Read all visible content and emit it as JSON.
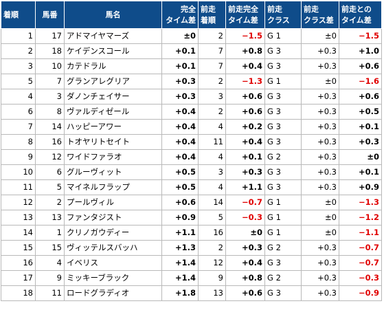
{
  "headers": {
    "finish": [
      "着順"
    ],
    "post": [
      "馬番"
    ],
    "horse": [
      "馬名"
    ],
    "time_diff": [
      "完全",
      "タイム差"
    ],
    "prev_finish": [
      "前走",
      "着順"
    ],
    "prev_time_diff": [
      "前走完全",
      "タイム差"
    ],
    "prev_class": [
      "前走",
      "クラス"
    ],
    "class_diff": [
      "前走",
      "クラス差"
    ],
    "time_diff_vs_prev": [
      "前走との",
      "タイム差"
    ]
  },
  "colors": {
    "header_bg": "#0f4c8a",
    "header_text": "#ffffff",
    "negative": "#e00000",
    "grid": "#b9b9b9"
  },
  "rows": [
    {
      "finish": "1",
      "post": "17",
      "horse": "アドマイヤマーズ",
      "time_diff": "±0",
      "prev_finish": "2",
      "prev_time_diff": "−1.5",
      "prev_time_diff_red": true,
      "prev_class": "G 1",
      "class_diff": "±0",
      "vs_prev": "−1.5",
      "vs_prev_red": true
    },
    {
      "finish": "2",
      "post": "18",
      "horse": "ケイデンスコール",
      "time_diff": "+0.1",
      "prev_finish": "7",
      "prev_time_diff": "+0.8",
      "prev_time_diff_red": false,
      "prev_class": "G 3",
      "class_diff": "+0.3",
      "vs_prev": "+1.0",
      "vs_prev_red": false
    },
    {
      "finish": "3",
      "post": "10",
      "horse": "カテドラル",
      "time_diff": "+0.1",
      "prev_finish": "7",
      "prev_time_diff": "+0.4",
      "prev_time_diff_red": false,
      "prev_class": "G 3",
      "class_diff": "+0.3",
      "vs_prev": "+0.6",
      "vs_prev_red": false
    },
    {
      "finish": "5",
      "post": "7",
      "horse": "グランアレグリア",
      "time_diff": "+0.3",
      "prev_finish": "2",
      "prev_time_diff": "−1.3",
      "prev_time_diff_red": true,
      "prev_class": "G 1",
      "class_diff": "±0",
      "vs_prev": "−1.6",
      "vs_prev_red": true
    },
    {
      "finish": "4",
      "post": "3",
      "horse": "ダノンチェイサー",
      "time_diff": "+0.3",
      "prev_finish": "3",
      "prev_time_diff": "+0.6",
      "prev_time_diff_red": false,
      "prev_class": "G 3",
      "class_diff": "+0.3",
      "vs_prev": "+0.6",
      "vs_prev_red": false
    },
    {
      "finish": "6",
      "post": "8",
      "horse": "ヴァルディゼール",
      "time_diff": "+0.4",
      "prev_finish": "2",
      "prev_time_diff": "+0.6",
      "prev_time_diff_red": false,
      "prev_class": "G 3",
      "class_diff": "+0.3",
      "vs_prev": "+0.5",
      "vs_prev_red": false
    },
    {
      "finish": "7",
      "post": "14",
      "horse": "ハッピーアワー",
      "time_diff": "+0.4",
      "prev_finish": "4",
      "prev_time_diff": "+0.2",
      "prev_time_diff_red": false,
      "prev_class": "G 3",
      "class_diff": "+0.3",
      "vs_prev": "+0.1",
      "vs_prev_red": false
    },
    {
      "finish": "8",
      "post": "16",
      "horse": "トオヤリトセイト",
      "time_diff": "+0.4",
      "prev_finish": "11",
      "prev_time_diff": "+0.4",
      "prev_time_diff_red": false,
      "prev_class": "G 3",
      "class_diff": "+0.3",
      "vs_prev": "+0.3",
      "vs_prev_red": false
    },
    {
      "finish": "9",
      "post": "12",
      "horse": "ワイドファラオ",
      "time_diff": "+0.4",
      "prev_finish": "4",
      "prev_time_diff": "+0.1",
      "prev_time_diff_red": false,
      "prev_class": "G 2",
      "class_diff": "+0.3",
      "vs_prev": "±0",
      "vs_prev_red": false
    },
    {
      "finish": "10",
      "post": "6",
      "horse": "グルーヴィット",
      "time_diff": "+0.5",
      "prev_finish": "3",
      "prev_time_diff": "+0.3",
      "prev_time_diff_red": false,
      "prev_class": "G 3",
      "class_diff": "+0.3",
      "vs_prev": "+0.1",
      "vs_prev_red": false
    },
    {
      "finish": "11",
      "post": "5",
      "horse": "マイネルフラップ",
      "time_diff": "+0.5",
      "prev_finish": "4",
      "prev_time_diff": "+1.1",
      "prev_time_diff_red": false,
      "prev_class": "G 3",
      "class_diff": "+0.3",
      "vs_prev": "+0.9",
      "vs_prev_red": false
    },
    {
      "finish": "12",
      "post": "2",
      "horse": "プールヴィル",
      "time_diff": "+0.6",
      "prev_finish": "14",
      "prev_time_diff": "−0.7",
      "prev_time_diff_red": true,
      "prev_class": "G 1",
      "class_diff": "±0",
      "vs_prev": "−1.3",
      "vs_prev_red": true
    },
    {
      "finish": "13",
      "post": "13",
      "horse": "ファンタジスト",
      "time_diff": "+0.9",
      "prev_finish": "5",
      "prev_time_diff": "−0.3",
      "prev_time_diff_red": true,
      "prev_class": "G 1",
      "class_diff": "±0",
      "vs_prev": "−1.2",
      "vs_prev_red": true
    },
    {
      "finish": "14",
      "post": "1",
      "horse": "クリノガウディー",
      "time_diff": "+1.1",
      "prev_finish": "16",
      "prev_time_diff": "±0",
      "prev_time_diff_red": false,
      "prev_class": "G 1",
      "class_diff": "±0",
      "vs_prev": "−1.1",
      "vs_prev_red": true
    },
    {
      "finish": "15",
      "post": "15",
      "horse": "ヴィッテルスバッハ",
      "time_diff": "+1.3",
      "prev_finish": "2",
      "prev_time_diff": "+0.3",
      "prev_time_diff_red": false,
      "prev_class": "G 2",
      "class_diff": "+0.3",
      "vs_prev": "−0.7",
      "vs_prev_red": true
    },
    {
      "finish": "16",
      "post": "4",
      "horse": "イベリス",
      "time_diff": "+1.4",
      "prev_finish": "12",
      "prev_time_diff": "+0.4",
      "prev_time_diff_red": false,
      "prev_class": "G 3",
      "class_diff": "+0.3",
      "vs_prev": "−0.7",
      "vs_prev_red": true
    },
    {
      "finish": "17",
      "post": "9",
      "horse": "ミッキーブラック",
      "time_diff": "+1.4",
      "prev_finish": "9",
      "prev_time_diff": "+0.8",
      "prev_time_diff_red": false,
      "prev_class": "G 2",
      "class_diff": "+0.3",
      "vs_prev": "−0.3",
      "vs_prev_red": true
    },
    {
      "finish": "18",
      "post": "11",
      "horse": "ロードグラディオ",
      "time_diff": "+1.8",
      "prev_finish": "13",
      "prev_time_diff": "+0.6",
      "prev_time_diff_red": false,
      "prev_class": "G 3",
      "class_diff": "+0.3",
      "vs_prev": "−0.9",
      "vs_prev_red": true
    }
  ]
}
